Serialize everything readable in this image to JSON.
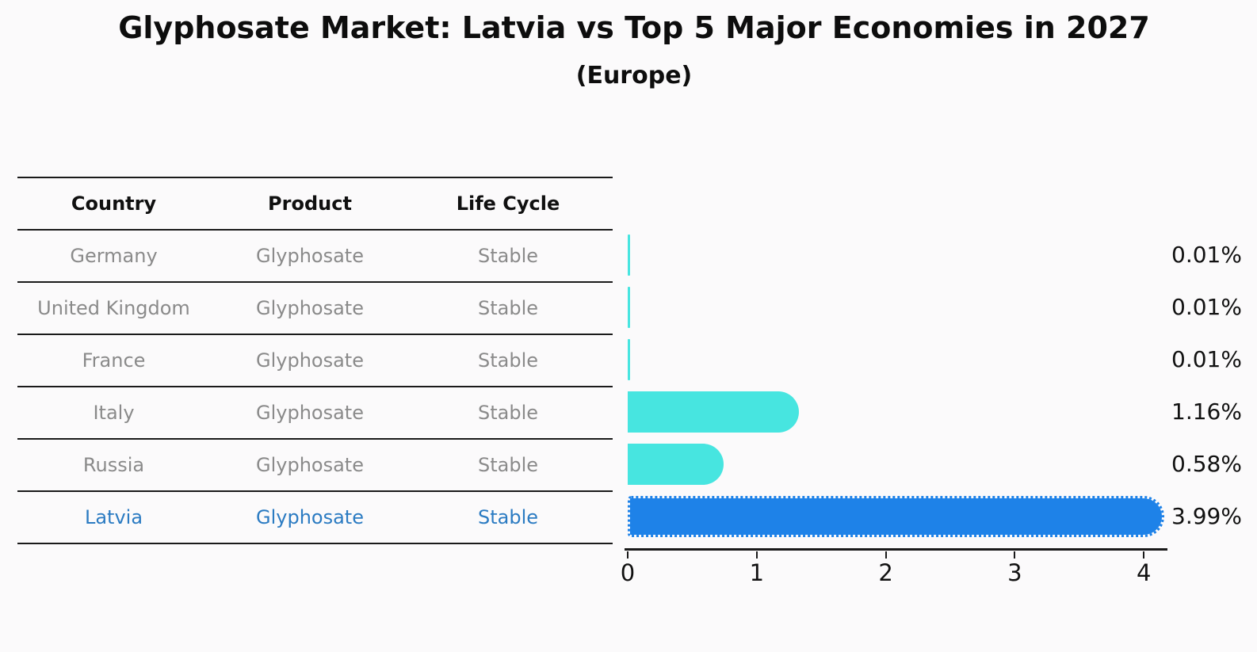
{
  "title": "Glyphosate Market: Latvia vs Top 5 Major Economies in 2027",
  "subtitle": "(Europe)",
  "table": {
    "headers": [
      "Country",
      "Product",
      "Life Cycle"
    ],
    "rows": [
      {
        "country": "Germany",
        "product": "Glyphosate",
        "life_cycle": "Stable",
        "highlight": false
      },
      {
        "country": "United Kingdom",
        "product": "Glyphosate",
        "life_cycle": "Stable",
        "highlight": false
      },
      {
        "country": "France",
        "product": "Glyphosate",
        "life_cycle": "Stable",
        "highlight": false
      },
      {
        "country": "Italy",
        "product": "Glyphosate",
        "life_cycle": "Stable",
        "highlight": false
      },
      {
        "country": "Russia",
        "product": "Glyphosate",
        "life_cycle": "Stable",
        "highlight": false
      },
      {
        "country": "Latvia",
        "product": "Glyphosate",
        "life_cycle": "Stable",
        "highlight": true
      }
    ]
  },
  "chart_data": {
    "type": "bar",
    "orientation": "horizontal",
    "title": "Glyphosate Market: Latvia vs Top 5 Major Economies in 2027",
    "subtitle": "(Europe)",
    "categories": [
      "Germany",
      "United Kingdom",
      "France",
      "Italy",
      "Russia",
      "Latvia"
    ],
    "values": [
      0.01,
      0.01,
      0.01,
      1.16,
      0.58,
      3.99
    ],
    "value_labels": [
      "0.01%",
      "0.01%",
      "0.01%",
      "1.16%",
      "0.58%",
      "3.99%"
    ],
    "xlim": [
      0,
      4.2
    ],
    "x_ticks": [
      0,
      1,
      2,
      3,
      4
    ],
    "xlabel": "",
    "ylabel": "",
    "grid": false,
    "legend": false,
    "highlight_category": "Latvia"
  },
  "colors": {
    "bar_default": "#47e5e0",
    "bar_highlight": "#1e82e8",
    "highlight_text": "#2b7bc2",
    "row_text": "#8a8a8a"
  }
}
